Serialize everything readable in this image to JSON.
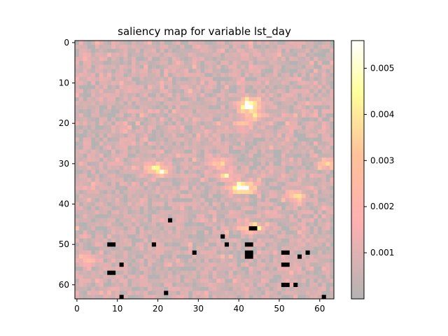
{
  "chart_data": {
    "type": "heatmap",
    "title": "saliency map for variable lst_day",
    "xlabel": "",
    "ylabel": "",
    "grid_size": [
      64,
      64
    ],
    "xlim": [
      -0.5,
      63.5
    ],
    "ylim": [
      63.5,
      -0.5
    ],
    "x_ticks": [
      "0",
      "10",
      "20",
      "30",
      "40",
      "50",
      "60"
    ],
    "y_ticks": [
      "0",
      "10",
      "20",
      "30",
      "40",
      "50",
      "60"
    ],
    "colorbar": {
      "range": [
        0.0,
        0.0056
      ],
      "ticks": [
        "0.001",
        "0.002",
        "0.003",
        "0.004",
        "0.005"
      ],
      "colormap": "hot (alpha blended over gray)"
    },
    "background_color": "#b3b3b3",
    "hotspots": [
      {
        "x": 42,
        "y": 16,
        "value": 0.0045
      },
      {
        "x": 43,
        "y": 15,
        "value": 0.0042
      },
      {
        "x": 40,
        "y": 36,
        "value": 0.0042
      },
      {
        "x": 42,
        "y": 36,
        "value": 0.004
      },
      {
        "x": 43,
        "y": 46,
        "value": 0.0045
      },
      {
        "x": 62,
        "y": 30,
        "value": 0.0038
      },
      {
        "x": 35,
        "y": 30,
        "value": 0.0036
      },
      {
        "x": 19,
        "y": 31,
        "value": 0.0034
      },
      {
        "x": 21,
        "y": 32,
        "value": 0.0032
      },
      {
        "x": 37,
        "y": 33,
        "value": 0.0033
      },
      {
        "x": 54,
        "y": 38,
        "value": 0.0036
      },
      {
        "x": 3,
        "y": 54,
        "value": 0.003
      },
      {
        "x": 44,
        "y": 18,
        "value": 0.0034
      },
      {
        "x": 41,
        "y": 20,
        "value": 0.0028
      }
    ],
    "max_cells": [
      {
        "x": 23,
        "y": 44
      },
      {
        "x": 36,
        "y": 48
      },
      {
        "x": 43,
        "y": 46
      },
      {
        "x": 44,
        "y": 46
      },
      {
        "x": 8,
        "y": 50
      },
      {
        "x": 9,
        "y": 50
      },
      {
        "x": 19,
        "y": 50
      },
      {
        "x": 37,
        "y": 50
      },
      {
        "x": 42,
        "y": 50
      },
      {
        "x": 43,
        "y": 50
      },
      {
        "x": 29,
        "y": 52
      },
      {
        "x": 51,
        "y": 52
      },
      {
        "x": 52,
        "y": 52
      },
      {
        "x": 57,
        "y": 52
      },
      {
        "x": 42,
        "y": 52
      },
      {
        "x": 43,
        "y": 52
      },
      {
        "x": 42,
        "y": 53
      },
      {
        "x": 43,
        "y": 53
      },
      {
        "x": 55,
        "y": 53
      },
      {
        "x": 11,
        "y": 55
      },
      {
        "x": 51,
        "y": 55
      },
      {
        "x": 52,
        "y": 55
      },
      {
        "x": 8,
        "y": 57
      },
      {
        "x": 9,
        "y": 57
      },
      {
        "x": 51,
        "y": 60
      },
      {
        "x": 52,
        "y": 60
      },
      {
        "x": 54,
        "y": 60
      },
      {
        "x": 22,
        "y": 62
      },
      {
        "x": 11,
        "y": 63
      },
      {
        "x": 61,
        "y": 63
      }
    ]
  }
}
